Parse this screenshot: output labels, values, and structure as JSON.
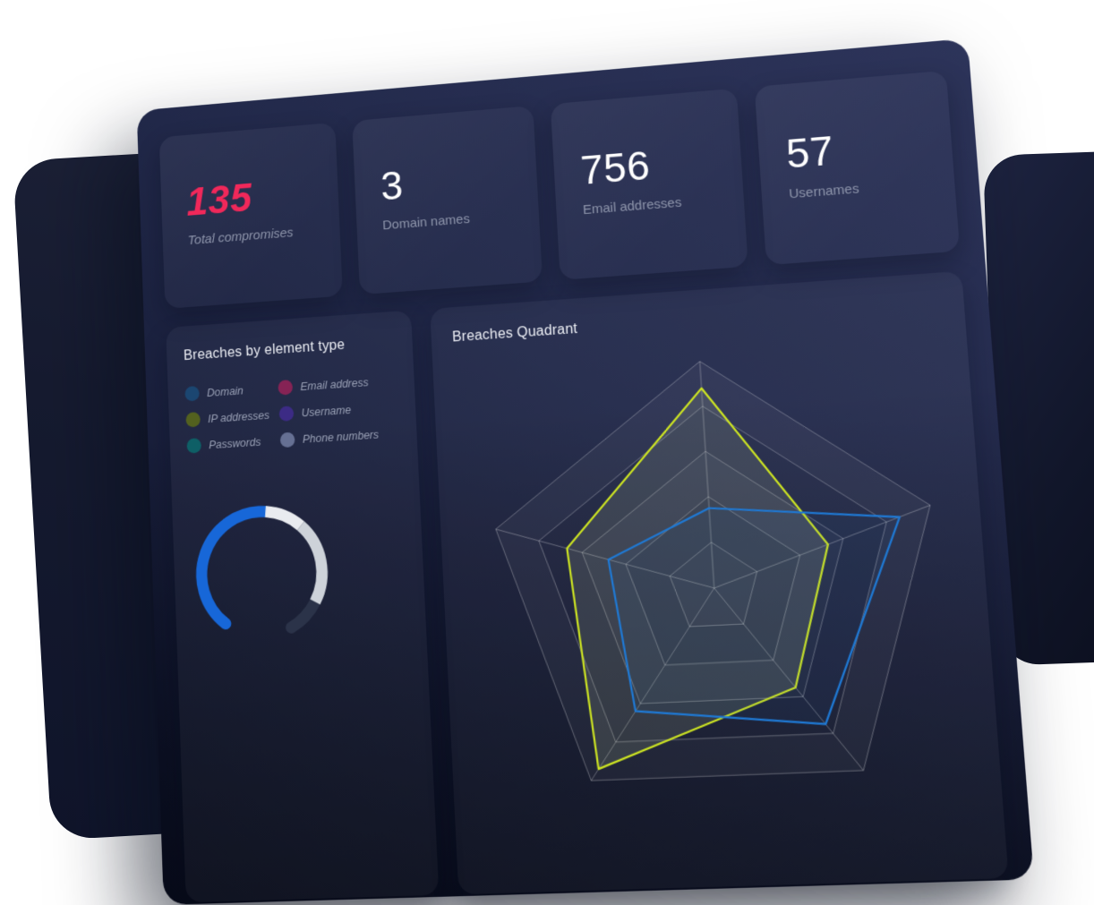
{
  "stat_cards": [
    {
      "value": "135",
      "label": "Total compromises",
      "accent_color": "#f0285a"
    },
    {
      "value": "3",
      "label": "Domain names"
    },
    {
      "value": "756",
      "label": "Email addresses"
    },
    {
      "value": "57",
      "label": "Usernames"
    }
  ],
  "breakdown_card": {
    "title": "Breaches by element type",
    "legend": [
      {
        "label": "Domain",
        "color": "#1b4671"
      },
      {
        "label": "Email address",
        "color": "#862355"
      },
      {
        "label": "IP addresses",
        "color": "#53611f"
      },
      {
        "label": "Username",
        "color": "#3c2b85"
      },
      {
        "label": "Passwords",
        "color": "#0e5f66"
      },
      {
        "label": "Phone numbers",
        "color": "#667093"
      }
    ]
  },
  "radar_card": {
    "title": "Breaches Quadrant"
  },
  "chart_data": [
    {
      "type": "radar",
      "title": "Breaches Quadrant",
      "axes_count": 5,
      "axis_order": "clockwise-from-top",
      "rings": [
        0.2,
        0.4,
        0.6,
        0.8,
        1.0
      ],
      "ring_band_colors": [
        "rgba(255,255,255,0.042)",
        "rgba(255,255,255,0.016)",
        "rgba(255,255,255,0.038)",
        "rgba(255,255,255,0.016)",
        "rgba(255,255,255,0.03)"
      ],
      "grid_color": "rgba(255,255,255,0.30)",
      "legend_position": "none",
      "series": [
        {
          "name": "series-yellow",
          "color": "#cbe223",
          "fill": "rgba(215,232,175,0.13)",
          "values": [
            0.88,
            0.53,
            0.55,
            0.94,
            0.67
          ]
        },
        {
          "name": "series-blue",
          "color": "#1f79d4",
          "fill": "rgba(31,121,212,0.06)",
          "values": [
            0.35,
            0.86,
            0.75,
            0.64,
            0.48
          ]
        }
      ]
    },
    {
      "type": "donut-gauge",
      "start_angle_deg": 219,
      "gap_position": "bottom",
      "segments": [
        {
          "name": "blue-segment",
          "color": "#1767d8",
          "sweep_deg": 147
        },
        {
          "name": "white-segment",
          "color": "#e9ebef",
          "sweep_deg": 37
        },
        {
          "name": "light-gray-segment",
          "color": "#cdd2d9",
          "sweep_deg": 77
        },
        {
          "name": "dark-segment",
          "color": "#2b3349",
          "sweep_deg": 33
        }
      ]
    }
  ]
}
